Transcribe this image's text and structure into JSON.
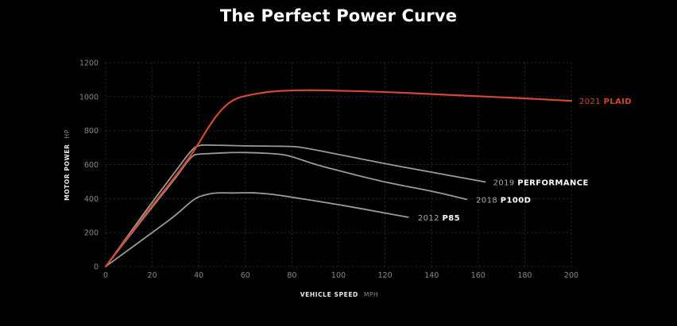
{
  "title": "The Perfect Power Curve",
  "chart_data": {
    "type": "line",
    "title": "The Perfect Power Curve",
    "xlabel": "VEHICLE SPEED",
    "xlabel_unit": "MPH",
    "ylabel": "MOTOR POWER",
    "ylabel_unit": "HP",
    "xlim": [
      0,
      200
    ],
    "ylim": [
      0,
      1200
    ],
    "xticks": [
      0,
      20,
      40,
      60,
      80,
      100,
      120,
      140,
      160,
      180,
      200
    ],
    "yticks": [
      0,
      200,
      400,
      600,
      800,
      1000,
      1200
    ],
    "grid": true,
    "legend": "inline labels at line ends",
    "series": [
      {
        "name": "2021 PLAID",
        "year": "2021",
        "model": "PLAID",
        "color": "#d4492e",
        "points": [
          [
            0,
            0
          ],
          [
            10,
            180
          ],
          [
            20,
            360
          ],
          [
            30,
            530
          ],
          [
            38,
            680
          ],
          [
            45,
            840
          ],
          [
            50,
            930
          ],
          [
            55,
            985
          ],
          [
            60,
            1005
          ],
          [
            70,
            1030
          ],
          [
            80,
            1037
          ],
          [
            90,
            1038
          ],
          [
            100,
            1035
          ],
          [
            120,
            1028
          ],
          [
            140,
            1015
          ],
          [
            160,
            1002
          ],
          [
            180,
            990
          ],
          [
            200,
            975
          ]
        ]
      },
      {
        "name": "2019 PERFORMANCE",
        "year": "2019",
        "model": "PERFORMANCE",
        "color": "#9a9a9a",
        "points": [
          [
            0,
            0
          ],
          [
            10,
            190
          ],
          [
            20,
            380
          ],
          [
            30,
            560
          ],
          [
            37,
            690
          ],
          [
            40,
            715
          ],
          [
            45,
            715
          ],
          [
            60,
            710
          ],
          [
            70,
            708
          ],
          [
            80,
            708
          ],
          [
            85,
            700
          ],
          [
            100,
            660
          ],
          [
            120,
            605
          ],
          [
            140,
            555
          ],
          [
            163,
            498
          ]
        ]
      },
      {
        "name": "2018 P100D",
        "year": "2018",
        "model": "P100D",
        "color": "#9a9a9a",
        "points": [
          [
            0,
            0
          ],
          [
            10,
            175
          ],
          [
            20,
            350
          ],
          [
            30,
            520
          ],
          [
            37,
            655
          ],
          [
            40,
            662
          ],
          [
            45,
            665
          ],
          [
            55,
            672
          ],
          [
            65,
            670
          ],
          [
            75,
            662
          ],
          [
            80,
            648
          ],
          [
            90,
            600
          ],
          [
            100,
            565
          ],
          [
            120,
            495
          ],
          [
            140,
            445
          ],
          [
            155,
            395
          ]
        ]
      },
      {
        "name": "2012 P85",
        "year": "2012",
        "model": "P85",
        "color": "#9a9a9a",
        "points": [
          [
            0,
            0
          ],
          [
            10,
            100
          ],
          [
            20,
            200
          ],
          [
            30,
            300
          ],
          [
            38,
            400
          ],
          [
            42,
            420
          ],
          [
            47,
            435
          ],
          [
            55,
            432
          ],
          [
            60,
            435
          ],
          [
            65,
            433
          ],
          [
            72,
            425
          ],
          [
            80,
            408
          ],
          [
            100,
            365
          ],
          [
            120,
            315
          ],
          [
            130,
            290
          ]
        ]
      }
    ]
  }
}
